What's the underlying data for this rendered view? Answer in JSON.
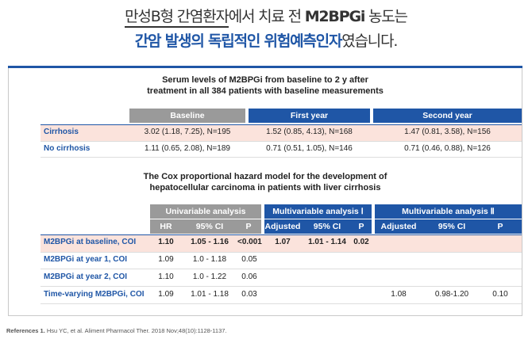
{
  "headline": {
    "line1_underlined": "만성B형 간염환자",
    "line1_rest": "에서 치료 전 ",
    "line1_bold": "M2BPGi",
    "line1_end": " 농도는",
    "line2_blue": "간암 발생의 독립적인 위험예측인자",
    "line2_end": "였습니다."
  },
  "table1": {
    "title_line1": "Serum levels of M2BPGi from baseline to 2 y after",
    "title_line2": "treatment in all 384 patients with baseline measurements",
    "headers": [
      "Baseline",
      "First year",
      "Second year"
    ],
    "rows": [
      {
        "label": "Cirrhosis",
        "values": [
          "3.02 (1.18, 7.25), N=195",
          "1.52 (0.85, 4.13), N=168",
          "1.47 (0.81, 3.58), N=156"
        ]
      },
      {
        "label": "No cirrhosis",
        "values": [
          "1.11 (0.65, 2.08), N=189",
          "0.71 (0.51, 1.05), N=146",
          "0.71 (0.46, 0.88), N=126"
        ]
      }
    ]
  },
  "table2": {
    "title_line1": "The Cox proportional hazard model for the development of",
    "title_line2": "hepatocellular carcinoma in patients with liver cirrhosis",
    "groups": [
      "Univariable analysis",
      "Multivariable analysis Ⅰ",
      "Multivariable analysis Ⅱ"
    ],
    "subheaders": {
      "uni": [
        "HR",
        "95% CI",
        "P"
      ],
      "m1": [
        "Adjusted",
        "95% CI",
        "P"
      ],
      "m2": [
        "Adjusted",
        "95% CI",
        "P"
      ]
    },
    "rows": [
      {
        "label": "M2BPGi at baseline, COI",
        "uni": [
          "1.10",
          "1.05 - 1.16",
          "<0.001"
        ],
        "m1": [
          "1.07",
          "1.01 - 1.14",
          "0.02"
        ],
        "m2": [
          "",
          "",
          ""
        ]
      },
      {
        "label": "M2BPGi at year 1, COI",
        "uni": [
          "1.09",
          "1.0 - 1.18",
          "0.05"
        ],
        "m1": [
          "",
          "",
          ""
        ],
        "m2": [
          "",
          "",
          ""
        ]
      },
      {
        "label": "M2BPGi at year 2, COI",
        "uni": [
          "1.10",
          "1.0 - 1.22",
          "0.06"
        ],
        "m1": [
          "",
          "",
          ""
        ],
        "m2": [
          "",
          "",
          ""
        ]
      },
      {
        "label": "Time-varying M2BPGi, COI",
        "uni": [
          "1.09",
          "1.01 - 1.18",
          "0.03"
        ],
        "m1": [
          "",
          "",
          ""
        ],
        "m2": [
          "1.08",
          "0.98-1.20",
          "0.10"
        ]
      }
    ]
  },
  "references": {
    "label": "References 1.",
    "text": " Hsu YC, et al. Aliment Pharmacol Ther. 2018 Nov;48(10):1128-1137."
  },
  "colors": {
    "blue": "#1f56a6",
    "gray": "#9a9a9a",
    "highlight": "#fbe3dc"
  }
}
